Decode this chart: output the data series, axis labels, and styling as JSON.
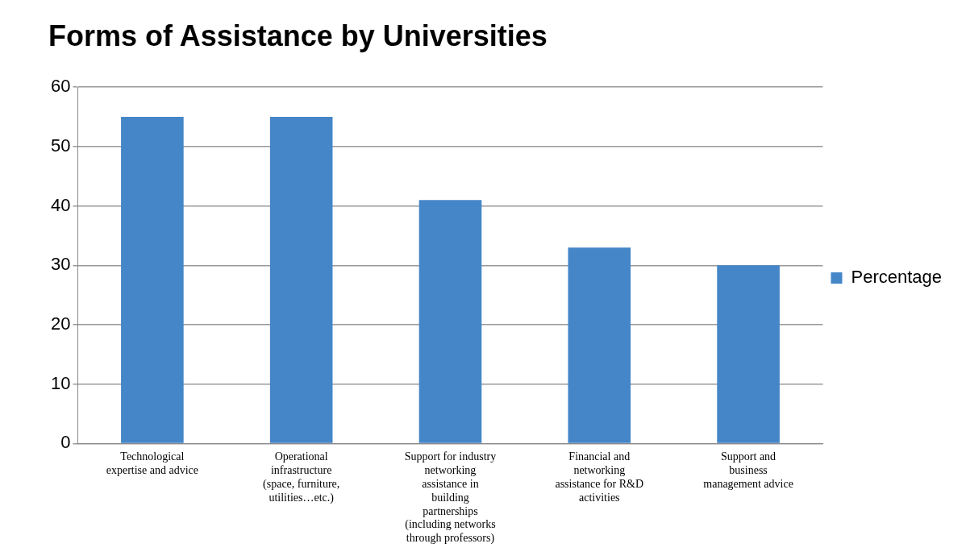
{
  "chart_data": {
    "type": "bar",
    "title": "Forms of Assistance by Universities",
    "categories": [
      "Technological expertise and advice",
      "Operational infrastructure (space, furniture, utilities…etc.)",
      "Support for industry networking assistance in building partnerships (including networks through professors)",
      "Financial and networking assistance for R&D activities",
      "Support and business management advice"
    ],
    "series": [
      {
        "name": "Percentage",
        "color": "#4586c8",
        "values": [
          55,
          55,
          41,
          33,
          30
        ]
      }
    ],
    "ylim": [
      0,
      60
    ],
    "yticks": [
      0,
      10,
      20,
      30,
      40,
      50,
      60
    ],
    "grid": "y",
    "legend": "right"
  }
}
